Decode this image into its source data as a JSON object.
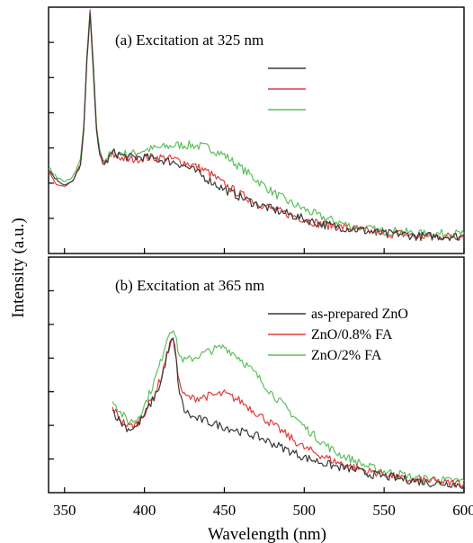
{
  "chart_data": {
    "type": "line",
    "xlabel": "Wavelength (nm)",
    "ylabel": "Intensity (a.u.)",
    "x_ticks": [
      350,
      400,
      450,
      500,
      550,
      600
    ],
    "xlim": [
      340,
      600
    ],
    "colors": {
      "as_prepared": "#3a3a3a",
      "fa_08": "#e23b3b",
      "fa_2": "#5cc05c"
    },
    "legend": [
      {
        "key": "as_prepared",
        "label": "as-prepared ZnO"
      },
      {
        "key": "fa_08",
        "label": "ZnO/0.8% FA"
      },
      {
        "key": "fa_2",
        "label": "ZnO/2% FA"
      }
    ],
    "panels": [
      {
        "id": "a",
        "label": "(a) Excitation at 325 nm",
        "ylim": [
          0,
          1
        ],
        "legend_text_visible": false,
        "series": [
          {
            "key": "as_prepared",
            "x": [
              340,
              345,
              350,
              355,
              360,
              362,
              364,
              366,
              368,
              370,
              372,
              375,
              380,
              385,
              390,
              400,
              410,
              420,
              430,
              440,
              450,
              460,
              470,
              480,
              490,
              500,
              510,
              520,
              530,
              540,
              550,
              560,
              570,
              580,
              590,
              600
            ],
            "y": [
              0.34,
              0.3,
              0.28,
              0.29,
              0.36,
              0.5,
              0.78,
              0.97,
              0.75,
              0.5,
              0.4,
              0.36,
              0.41,
              0.4,
              0.39,
              0.39,
              0.38,
              0.37,
              0.34,
              0.3,
              0.26,
              0.23,
              0.2,
              0.18,
              0.16,
              0.14,
              0.12,
              0.11,
              0.1,
              0.09,
              0.08,
              0.08,
              0.07,
              0.07,
              0.07,
              0.07
            ]
          },
          {
            "key": "fa_08",
            "x": [
              340,
              345,
              350,
              355,
              360,
              362,
              364,
              366,
              368,
              370,
              372,
              375,
              380,
              385,
              390,
              400,
              410,
              420,
              430,
              440,
              450,
              460,
              470,
              480,
              490,
              500,
              510,
              520,
              530,
              540,
              550,
              560,
              570,
              580,
              590,
              600
            ],
            "y": [
              0.33,
              0.28,
              0.27,
              0.29,
              0.36,
              0.5,
              0.78,
              0.98,
              0.75,
              0.5,
              0.4,
              0.36,
              0.4,
              0.39,
              0.38,
              0.39,
              0.39,
              0.38,
              0.36,
              0.33,
              0.28,
              0.24,
              0.21,
              0.18,
              0.16,
              0.14,
              0.12,
              0.11,
              0.1,
              0.09,
              0.08,
              0.08,
              0.07,
              0.07,
              0.07,
              0.07
            ]
          },
          {
            "key": "fa_2",
            "x": [
              340,
              345,
              350,
              355,
              360,
              362,
              364,
              366,
              368,
              370,
              372,
              375,
              380,
              385,
              390,
              400,
              410,
              420,
              430,
              440,
              450,
              460,
              470,
              480,
              490,
              500,
              510,
              520,
              530,
              540,
              550,
              560,
              570,
              580,
              590,
              600
            ],
            "y": [
              0.35,
              0.31,
              0.29,
              0.31,
              0.38,
              0.52,
              0.8,
              0.99,
              0.77,
              0.52,
              0.42,
              0.38,
              0.41,
              0.41,
              0.4,
              0.42,
              0.43,
              0.44,
              0.44,
              0.43,
              0.4,
              0.35,
              0.3,
              0.25,
              0.21,
              0.18,
              0.15,
              0.13,
              0.11,
              0.1,
              0.09,
              0.09,
              0.08,
              0.08,
              0.08,
              0.08
            ]
          }
        ]
      },
      {
        "id": "b",
        "label": "(b) Excitation at 365 nm",
        "ylim": [
          0,
          1
        ],
        "legend_text_visible": true,
        "series": [
          {
            "key": "as_prepared",
            "x": [
              380,
              385,
              390,
              395,
              400,
              405,
              410,
              413,
              416,
              418,
              420,
              422,
              425,
              430,
              440,
              450,
              460,
              470,
              480,
              490,
              500,
              510,
              520,
              530,
              540,
              550,
              560,
              570,
              580,
              590,
              600
            ],
            "y": [
              0.35,
              0.3,
              0.27,
              0.28,
              0.33,
              0.39,
              0.46,
              0.55,
              0.63,
              0.65,
              0.55,
              0.42,
              0.35,
              0.32,
              0.3,
              0.28,
              0.26,
              0.24,
              0.21,
              0.18,
              0.15,
              0.13,
              0.11,
              0.1,
              0.08,
              0.07,
              0.06,
              0.05,
              0.04,
              0.04,
              0.03
            ]
          },
          {
            "key": "fa_08",
            "x": [
              380,
              385,
              390,
              395,
              400,
              405,
              410,
              413,
              416,
              418,
              420,
              422,
              425,
              430,
              440,
              450,
              460,
              470,
              480,
              490,
              500,
              510,
              520,
              530,
              540,
              550,
              560,
              570,
              580,
              590,
              600
            ],
            "y": [
              0.36,
              0.31,
              0.28,
              0.29,
              0.34,
              0.4,
              0.48,
              0.56,
              0.63,
              0.65,
              0.57,
              0.46,
              0.41,
              0.4,
              0.41,
              0.42,
              0.39,
              0.34,
              0.29,
              0.24,
              0.19,
              0.16,
              0.13,
              0.11,
              0.09,
              0.08,
              0.06,
              0.05,
              0.05,
              0.04,
              0.04
            ]
          },
          {
            "key": "fa_2",
            "x": [
              380,
              385,
              390,
              395,
              400,
              405,
              410,
              413,
              416,
              418,
              420,
              422,
              425,
              430,
              440,
              450,
              460,
              470,
              480,
              490,
              500,
              510,
              520,
              530,
              540,
              550,
              560,
              570,
              580,
              590,
              600
            ],
            "y": [
              0.4,
              0.34,
              0.3,
              0.31,
              0.37,
              0.45,
              0.55,
              0.63,
              0.69,
              0.7,
              0.64,
              0.58,
              0.56,
              0.57,
              0.6,
              0.62,
              0.57,
              0.5,
              0.42,
              0.35,
              0.28,
              0.22,
              0.17,
              0.14,
              0.11,
              0.09,
              0.08,
              0.06,
              0.06,
              0.05,
              0.05
            ]
          }
        ]
      }
    ]
  }
}
